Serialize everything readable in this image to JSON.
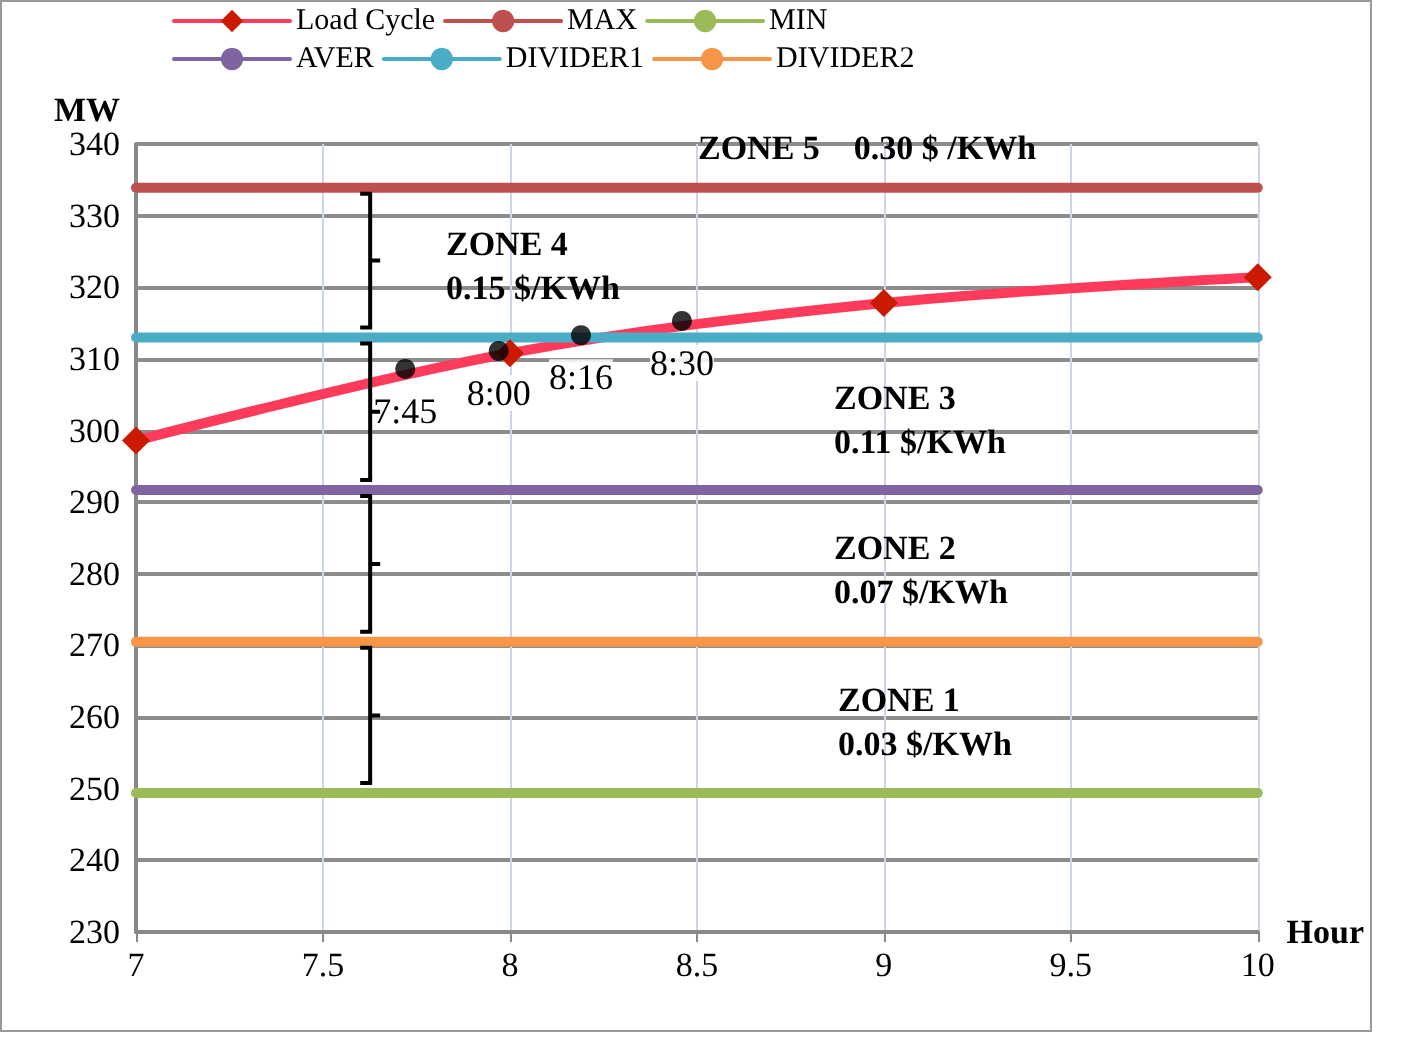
{
  "chart_data": {
    "type": "line",
    "xlabel": "Hour",
    "ylabel": "MW",
    "xlim": [
      7,
      10
    ],
    "xticks": [
      7,
      7.5,
      8,
      8.5,
      9,
      9.5,
      10
    ],
    "ylim": [
      230,
      340
    ],
    "yticks": [
      230,
      240,
      250,
      260,
      270,
      280,
      290,
      300,
      310,
      320,
      330,
      340
    ],
    "grid": true,
    "legend": "top",
    "line_style": "solid",
    "series": [
      {
        "name": "Load Cycle",
        "color": "#ff3b5c",
        "marker": "diamond",
        "x": [
          7,
          8,
          9,
          10
        ],
        "values": [
          298.6,
          310.8,
          317.8,
          321.4
        ]
      },
      {
        "name": "MAX",
        "color": "#c0504d",
        "marker": "none",
        "x": [
          7,
          10
        ],
        "values": [
          333.9,
          333.9
        ]
      },
      {
        "name": "MIN",
        "color": "#9bbb59",
        "marker": "none",
        "x": [
          7,
          10
        ],
        "values": [
          249.4,
          249.4
        ]
      },
      {
        "name": "AVER",
        "color": "#8064a2",
        "marker": "none",
        "x": [
          7,
          10
        ],
        "values": [
          291.7,
          291.7
        ]
      },
      {
        "name": "DIVIDER1",
        "color": "#4bacc6",
        "marker": "none",
        "x": [
          7,
          10
        ],
        "values": [
          313,
          313
        ]
      },
      {
        "name": "DIVIDER2",
        "color": "#f79646",
        "marker": "none",
        "x": [
          7,
          10
        ],
        "values": [
          270.5,
          270.5
        ]
      },
      {
        "type": "scatter",
        "color": "#000000",
        "marker": "circle",
        "x": [
          7.72,
          7.97,
          8.19,
          8.46
        ],
        "values": [
          308.6,
          311.1,
          313.3,
          315.3
        ]
      }
    ],
    "annotations": [
      "ZONE 5    0.30 $ /KWh",
      "ZONE 4\n0.15 $/KWh",
      "ZONE 3\n0.11 $/KWh",
      "ZONE 2\n0.07 $/KWh",
      "ZONE 1\n0.03 $/KWh",
      {
        "text": "7:45",
        "x": 7.72,
        "y": 308.6
      },
      {
        "text": "8:00",
        "x": 7.97,
        "y": 311.1
      },
      {
        "text": "8:16",
        "x": 8.19,
        "y": 313.3
      },
      {
        "text": "8:30",
        "x": 8.46,
        "y": 315.3
      }
    ]
  }
}
